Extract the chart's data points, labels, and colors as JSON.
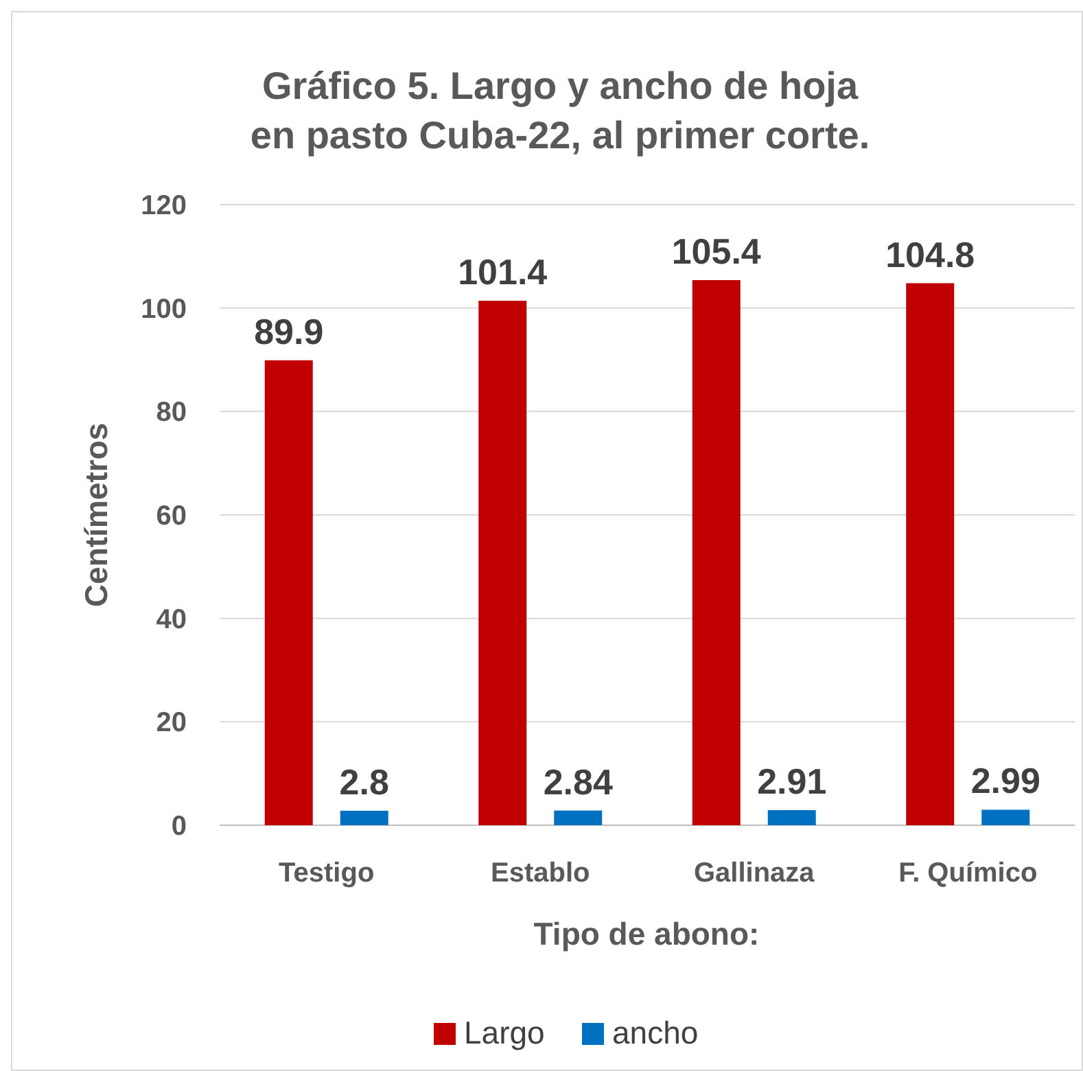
{
  "chart_data": {
    "type": "bar",
    "title": "Gráfico 5. Largo y ancho de hoja en pasto Cuba-22, al primer corte.",
    "xlabel": "Tipo de abono:",
    "ylabel": "Centímetros",
    "categories": [
      "Testigo",
      "Establo",
      "Gallinaza",
      "F. Químico"
    ],
    "series": [
      {
        "name": "Largo",
        "color": "#c00000",
        "values": [
          89.9,
          101.4,
          105.4,
          104.8
        ]
      },
      {
        "name": "ancho",
        "color": "#0070c0",
        "values": [
          2.8,
          2.84,
          2.91,
          2.99
        ]
      }
    ],
    "ylim": [
      0,
      120
    ],
    "yticks": [
      0,
      20,
      40,
      60,
      80,
      100,
      120
    ],
    "grid": "y",
    "legend": "bottom",
    "data_labels": true
  }
}
